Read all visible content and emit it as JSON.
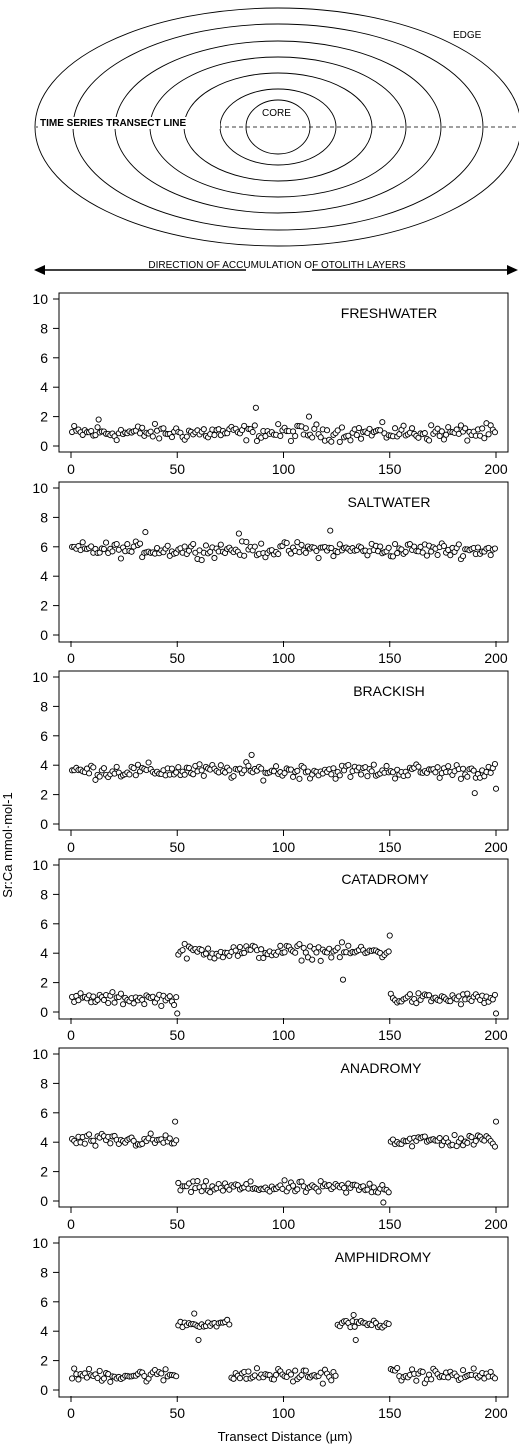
{
  "diagram": {
    "edge_label": "EDGE",
    "core_label": "CORE",
    "transect_label": "TIME SERIES TRANSECT LINE",
    "direction_label": "DIRECTION OF ACCUMULATION OF OTOLITH LAYERS"
  },
  "colors": {
    "ink": "#000000",
    "background": "#ffffff"
  },
  "chart_data": [
    {
      "type": "scatter",
      "title": "FRESHWATER",
      "xlabel": "Transect Distance (µm)",
      "ylabel": "Sr:Ca mmol·mol-1",
      "xlim": [
        0,
        200
      ],
      "ylim": [
        0,
        10
      ],
      "xticks": [
        0,
        50,
        100,
        150,
        200
      ],
      "yticks": [
        0,
        2,
        4,
        6,
        8,
        10
      ],
      "segments": [
        {
          "x_start": 0,
          "x_end": 200,
          "mean": 0.9,
          "spread": 0.6
        }
      ],
      "outliers": [
        {
          "x": 87,
          "y": 2.6
        },
        {
          "x": 112,
          "y": 2.0
        },
        {
          "x": 13,
          "y": 1.8
        }
      ]
    },
    {
      "type": "scatter",
      "title": "SALTWATER",
      "xlim": [
        0,
        200
      ],
      "ylim": [
        0,
        10
      ],
      "xticks": [
        0,
        50,
        100,
        150,
        200
      ],
      "yticks": [
        0,
        2,
        4,
        6,
        8,
        10
      ],
      "segments": [
        {
          "x_start": 0,
          "x_end": 200,
          "mean": 5.8,
          "spread": 0.55
        }
      ],
      "outliers": [
        {
          "x": 35,
          "y": 7.0
        },
        {
          "x": 122,
          "y": 7.1
        },
        {
          "x": 79,
          "y": 6.9
        }
      ]
    },
    {
      "type": "scatter",
      "title": "BRACKISH",
      "xlim": [
        0,
        200
      ],
      "ylim": [
        0,
        10
      ],
      "xticks": [
        0,
        50,
        100,
        150,
        200
      ],
      "yticks": [
        0,
        2,
        4,
        6,
        8,
        10
      ],
      "segments": [
        {
          "x_start": 0,
          "x_end": 200,
          "mean": 3.6,
          "spread": 0.55
        }
      ],
      "outliers": [
        {
          "x": 190,
          "y": 2.1
        },
        {
          "x": 200,
          "y": 2.4
        },
        {
          "x": 85,
          "y": 4.7
        }
      ]
    },
    {
      "type": "scatter",
      "title": "CATADROMY",
      "xlim": [
        0,
        200
      ],
      "ylim": [
        0,
        10
      ],
      "xticks": [
        0,
        50,
        100,
        150,
        200
      ],
      "yticks": [
        0,
        2,
        4,
        6,
        8,
        10
      ],
      "segments": [
        {
          "x_start": 0,
          "x_end": 50,
          "mean": 0.9,
          "spread": 0.45
        },
        {
          "x_start": 50,
          "x_end": 150,
          "mean": 4.1,
          "spread": 0.55
        },
        {
          "x_start": 150,
          "x_end": 200,
          "mean": 0.9,
          "spread": 0.45
        }
      ],
      "outliers": [
        {
          "x": 50,
          "y": -0.1
        },
        {
          "x": 128,
          "y": 2.2
        },
        {
          "x": 150,
          "y": 5.2
        },
        {
          "x": 200,
          "y": -0.1
        }
      ]
    },
    {
      "type": "scatter",
      "title": "ANADROMY",
      "xlim": [
        0,
        200
      ],
      "ylim": [
        0,
        10
      ],
      "xticks": [
        0,
        50,
        100,
        150,
        200
      ],
      "yticks": [
        0,
        2,
        4,
        6,
        8,
        10
      ],
      "segments": [
        {
          "x_start": 0,
          "x_end": 50,
          "mean": 4.1,
          "spread": 0.5
        },
        {
          "x_start": 50,
          "x_end": 150,
          "mean": 0.9,
          "spread": 0.45
        },
        {
          "x_start": 150,
          "x_end": 200,
          "mean": 4.1,
          "spread": 0.5
        }
      ],
      "outliers": [
        {
          "x": 49,
          "y": 5.4
        },
        {
          "x": 147,
          "y": -0.1
        },
        {
          "x": 200,
          "y": 5.4
        }
      ]
    },
    {
      "type": "scatter",
      "title": "AMPHIDROMY",
      "xlim": [
        0,
        200
      ],
      "ylim": [
        0,
        10
      ],
      "xticks": [
        0,
        50,
        100,
        150,
        200
      ],
      "yticks": [
        0,
        2,
        4,
        6,
        8,
        10
      ],
      "segments": [
        {
          "x_start": 0,
          "x_end": 50,
          "mean": 1.0,
          "spread": 0.5
        },
        {
          "x_start": 50,
          "x_end": 75,
          "mean": 4.5,
          "spread": 0.3
        },
        {
          "x_start": 75,
          "x_end": 125,
          "mean": 1.0,
          "spread": 0.5
        },
        {
          "x_start": 125,
          "x_end": 150,
          "mean": 4.5,
          "spread": 0.3
        },
        {
          "x_start": 150,
          "x_end": 200,
          "mean": 1.0,
          "spread": 0.5
        }
      ],
      "outliers": [
        {
          "x": 58,
          "y": 5.2
        },
        {
          "x": 133,
          "y": 5.1
        },
        {
          "x": 60,
          "y": 3.4
        },
        {
          "x": 134,
          "y": 3.4
        }
      ]
    }
  ]
}
